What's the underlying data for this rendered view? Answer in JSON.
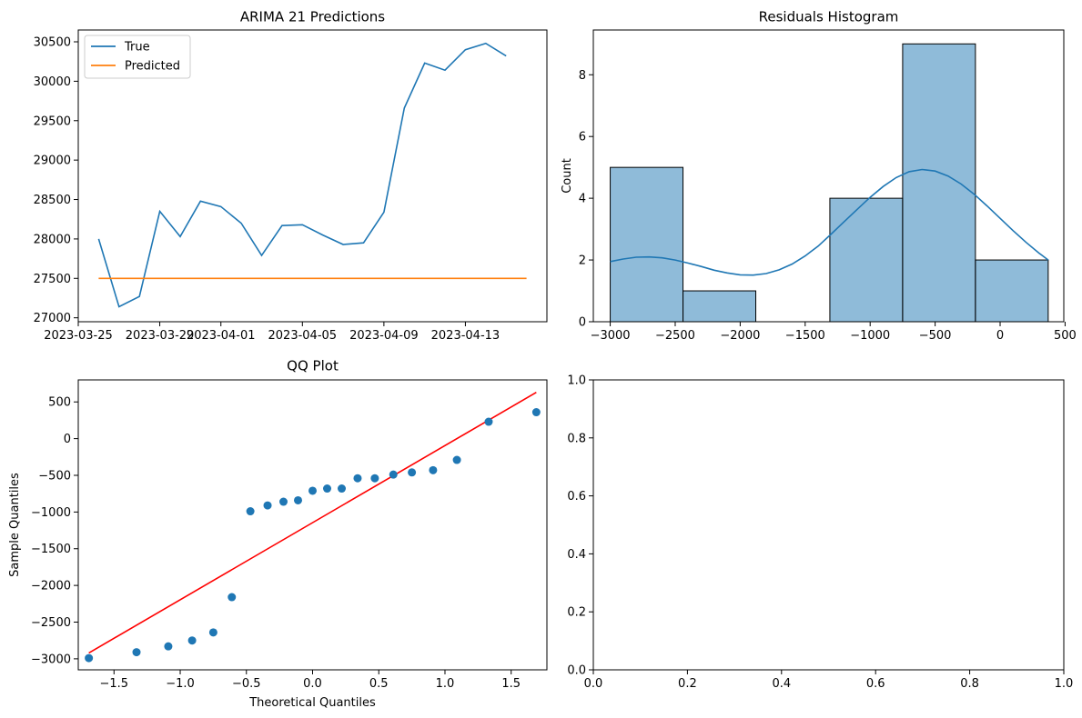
{
  "chart_data": [
    {
      "type": "line",
      "title": "ARIMA 21 Predictions",
      "xlabel": "",
      "ylabel": "",
      "x_dates": [
        "2023-03-26",
        "2023-03-27",
        "2023-03-28",
        "2023-03-29",
        "2023-03-30",
        "2023-03-31",
        "2023-04-01",
        "2023-04-02",
        "2023-04-03",
        "2023-04-04",
        "2023-04-05",
        "2023-04-06",
        "2023-04-07",
        "2023-04-08",
        "2023-04-09",
        "2023-04-10",
        "2023-04-11",
        "2023-04-12",
        "2023-04-13",
        "2023-04-14",
        "2023-04-15",
        "2023-04-16"
      ],
      "xlim": [
        "2023-03-25",
        "2023-04-17"
      ],
      "ylim": [
        26950,
        30650
      ],
      "xticks": [
        "2023-03-25",
        "2023-03-29",
        "2023-04-01",
        "2023-04-05",
        "2023-04-09",
        "2023-04-13"
      ],
      "yticks": [
        27000,
        27500,
        28000,
        28500,
        29000,
        29500,
        30000,
        30500
      ],
      "legend": "upper left",
      "series": [
        {
          "name": "True",
          "color": "#1f77b4",
          "values": [
            28000,
            27140,
            27270,
            28350,
            28030,
            28480,
            28410,
            28200,
            27790,
            28170,
            28180,
            28050,
            27930,
            27950,
            28340,
            29660,
            30230,
            30140,
            30400,
            30480,
            30320
          ]
        },
        {
          "name": "Predicted",
          "color": "#ff7f0e",
          "values": [
            27500,
            27500,
            27500,
            27500,
            27500,
            27500,
            27500,
            27500,
            27500,
            27500,
            27500,
            27500,
            27500,
            27500,
            27500,
            27500,
            27500,
            27500,
            27500,
            27500,
            27500,
            27500
          ]
        }
      ]
    },
    {
      "type": "bar",
      "title": "Residuals Histogram",
      "xlabel": "",
      "ylabel": "Count",
      "xlim": [
        -3130,
        490
      ],
      "ylim": [
        0,
        9.45
      ],
      "xticks": [
        -3000,
        -2500,
        -2000,
        -1500,
        -1000,
        -500,
        0,
        500
      ],
      "yticks": [
        0,
        2,
        4,
        6,
        8
      ],
      "bins": [
        {
          "from": -3000,
          "to": -2440,
          "count": 5
        },
        {
          "from": -2440,
          "to": -1880,
          "count": 1
        },
        {
          "from": -1880,
          "to": -1310,
          "count": 0
        },
        {
          "from": -1310,
          "to": -750,
          "count": 4
        },
        {
          "from": -750,
          "to": -190,
          "count": 9
        },
        {
          "from": -190,
          "to": 370,
          "count": 2
        }
      ],
      "bar_color": "#1f77b4",
      "kde": {
        "x": [
          -3000,
          -2900,
          -2800,
          -2700,
          -2600,
          -2500,
          -2400,
          -2300,
          -2200,
          -2100,
          -2000,
          -1900,
          -1800,
          -1700,
          -1600,
          -1500,
          -1400,
          -1300,
          -1200,
          -1100,
          -1000,
          -900,
          -800,
          -700,
          -600,
          -500,
          -400,
          -300,
          -200,
          -100,
          0,
          100,
          200,
          300,
          370
        ],
        "y": [
          1.95,
          2.03,
          2.09,
          2.1,
          2.07,
          2.0,
          1.9,
          1.79,
          1.67,
          1.58,
          1.52,
          1.51,
          1.56,
          1.68,
          1.87,
          2.13,
          2.45,
          2.84,
          3.24,
          3.64,
          4.03,
          4.38,
          4.67,
          4.86,
          4.93,
          4.88,
          4.72,
          4.46,
          4.13,
          3.75,
          3.35,
          2.95,
          2.57,
          2.22,
          2.0
        ]
      }
    },
    {
      "type": "scatter",
      "title": "QQ Plot",
      "xlabel": "Theoretical Quantiles",
      "ylabel": "Sample Quantiles",
      "xlim": [
        -1.77,
        1.77
      ],
      "ylim": [
        -3150,
        800
      ],
      "xticks": [
        -1.5,
        -1.0,
        -0.5,
        0.0,
        0.5,
        1.0,
        1.5
      ],
      "yticks": [
        -3000,
        -2500,
        -2000,
        -1500,
        -1000,
        -500,
        0,
        500
      ],
      "xtick_labels": [
        "−1.5",
        "−1.0",
        "−0.5",
        "0.0",
        "0.5",
        "1.0",
        "1.5"
      ],
      "ytick_labels": [
        "−3000",
        "−2500",
        "−2000",
        "−1500",
        "−1000",
        "−500",
        "0",
        "500"
      ],
      "points": {
        "x": [
          -1.69,
          -1.33,
          -1.09,
          -0.91,
          -0.75,
          -0.61,
          -0.47,
          -0.34,
          -0.22,
          -0.11,
          0.0,
          0.11,
          0.22,
          0.34,
          0.47,
          0.61,
          0.75,
          0.91,
          1.09,
          1.33,
          1.69
        ],
        "y": [
          -2990,
          -2910,
          -2830,
          -2750,
          -2640,
          -2160,
          -990,
          -910,
          -860,
          -840,
          -710,
          -680,
          -680,
          -540,
          -540,
          -490,
          -460,
          -430,
          -290,
          230,
          360
        ],
        "color": "#1f77b4"
      },
      "ref_line": {
        "x": [
          -1.69,
          1.69
        ],
        "y": [
          -2920,
          630
        ],
        "color": "#ff0000"
      }
    },
    {
      "type": "line",
      "title": "",
      "xlim": [
        0,
        1
      ],
      "ylim": [
        0,
        1
      ],
      "xticks": [
        0.0,
        0.2,
        0.4,
        0.6,
        0.8,
        1.0
      ],
      "yticks": [
        0.0,
        0.2,
        0.4,
        0.6,
        0.8,
        1.0
      ],
      "series": []
    }
  ]
}
